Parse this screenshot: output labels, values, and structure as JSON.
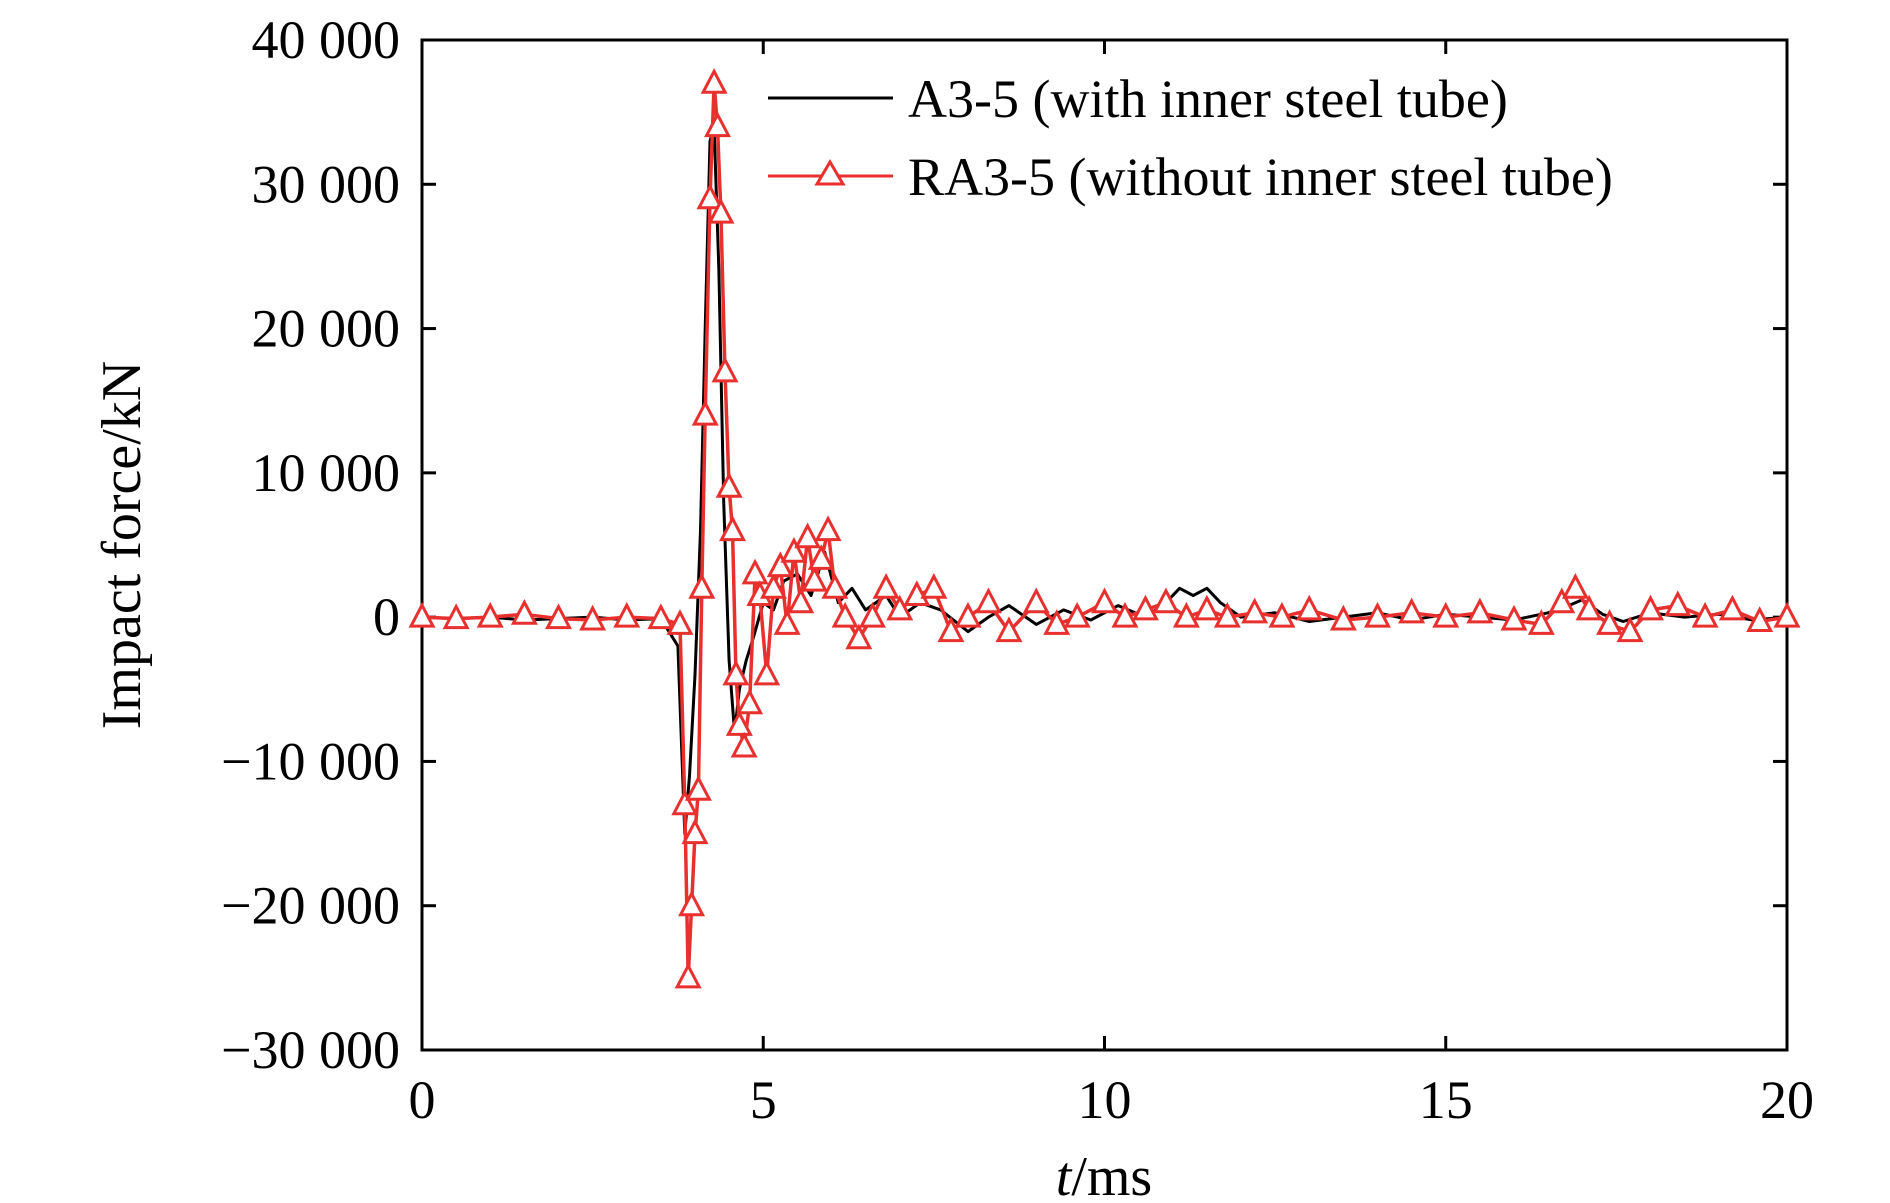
{
  "chart_data": {
    "type": "line",
    "title": "",
    "xlabel_italic": "t",
    "xlabel_rest": "/ms",
    "ylabel": "Impact force/kN",
    "xlim": [
      0,
      20
    ],
    "ylim": [
      -30000,
      40000
    ],
    "xticks": [
      0,
      5,
      10,
      15,
      20
    ],
    "xtick_labels": [
      "0",
      "5",
      "10",
      "15",
      "20"
    ],
    "yticks": [
      -30000,
      -20000,
      -10000,
      0,
      10000,
      20000,
      30000,
      40000
    ],
    "ytick_labels": [
      "−30 000",
      "−20 000",
      "−10 000",
      "0",
      "10 000",
      "20 000",
      "30 000",
      "40 000"
    ],
    "grid": false,
    "legend_position": "top-right",
    "series": [
      {
        "name": "A3-5 (with inner steel tube)",
        "color": "#000000",
        "marker": "none",
        "x": [
          0,
          0.5,
          1.0,
          1.5,
          2.0,
          2.5,
          3.0,
          3.5,
          3.75,
          3.85,
          3.92,
          4.0,
          4.08,
          4.15,
          4.22,
          4.28,
          4.35,
          4.42,
          4.5,
          4.58,
          4.65,
          4.75,
          4.85,
          5.0,
          5.15,
          5.3,
          5.5,
          5.7,
          5.9,
          6.1,
          6.3,
          6.5,
          6.8,
          7.0,
          7.3,
          7.6,
          8.0,
          8.3,
          8.6,
          9.0,
          9.4,
          9.8,
          10.2,
          10.6,
          10.9,
          11.1,
          11.3,
          11.5,
          11.7,
          12.0,
          12.5,
          13.0,
          13.5,
          14.0,
          14.5,
          15.0,
          15.5,
          16.0,
          16.5,
          16.8,
          17.0,
          17.3,
          17.6,
          18.0,
          18.5,
          19.0,
          19.5,
          20.0
        ],
        "y": [
          0,
          -100,
          0,
          -200,
          -100,
          0,
          -200,
          -100,
          -2000,
          -15000,
          -11000,
          -4000,
          6000,
          20000,
          33000,
          34000,
          24000,
          8000,
          -3000,
          -8000,
          -5000,
          -3000,
          -1500,
          1000,
          500,
          2500,
          3000,
          1500,
          4500,
          1000,
          2000,
          500,
          1500,
          0,
          1000,
          500,
          -1000,
          0,
          800,
          -500,
          500,
          -200,
          800,
          0,
          1000,
          2000,
          1500,
          2000,
          1000,
          0,
          300,
          -300,
          0,
          300,
          -200,
          200,
          0,
          -200,
          300,
          800,
          1200,
          200,
          -300,
          300,
          0,
          200,
          -200,
          0
        ]
      },
      {
        "name": "RA3-5 (without inner steel tube)",
        "color": "#e8302e",
        "marker": "triangle",
        "x": [
          0,
          0.5,
          1.0,
          1.5,
          2.0,
          2.5,
          3.0,
          3.5,
          3.78,
          3.85,
          3.9,
          3.95,
          4.0,
          4.05,
          4.1,
          4.15,
          4.22,
          4.28,
          4.33,
          4.38,
          4.44,
          4.5,
          4.55,
          4.6,
          4.65,
          4.72,
          4.8,
          4.88,
          4.95,
          5.05,
          5.15,
          5.25,
          5.35,
          5.45,
          5.55,
          5.65,
          5.75,
          5.85,
          5.95,
          6.05,
          6.2,
          6.4,
          6.6,
          6.8,
          7.0,
          7.25,
          7.5,
          7.75,
          8.0,
          8.3,
          8.6,
          9.0,
          9.3,
          9.6,
          10.0,
          10.3,
          10.6,
          10.9,
          11.2,
          11.5,
          11.8,
          12.2,
          12.6,
          13.0,
          13.5,
          14.0,
          14.5,
          15.0,
          15.5,
          16.0,
          16.4,
          16.7,
          16.9,
          17.1,
          17.4,
          17.7,
          18.0,
          18.4,
          18.8,
          19.2,
          19.6,
          20.0
        ],
        "y": [
          0,
          -100,
          0,
          200,
          -100,
          -200,
          0,
          -100,
          -500,
          -13000,
          -25000,
          -20000,
          -15000,
          -12000,
          2000,
          14000,
          29000,
          37000,
          34000,
          28000,
          17000,
          9000,
          6000,
          -4000,
          -7500,
          -9000,
          -6000,
          3000,
          1500,
          -4000,
          2000,
          3500,
          -500,
          4500,
          1000,
          5500,
          2500,
          4000,
          6000,
          2000,
          0,
          -1500,
          0,
          2000,
          500,
          1500,
          2000,
          -1000,
          0,
          1000,
          -1000,
          1000,
          -500,
          0,
          1000,
          0,
          500,
          1000,
          0,
          500,
          0,
          300,
          0,
          500,
          -200,
          0,
          300,
          0,
          300,
          -200,
          -500,
          1000,
          2000,
          500,
          -500,
          -1000,
          500,
          800,
          0,
          500,
          -300,
          0
        ]
      }
    ]
  }
}
